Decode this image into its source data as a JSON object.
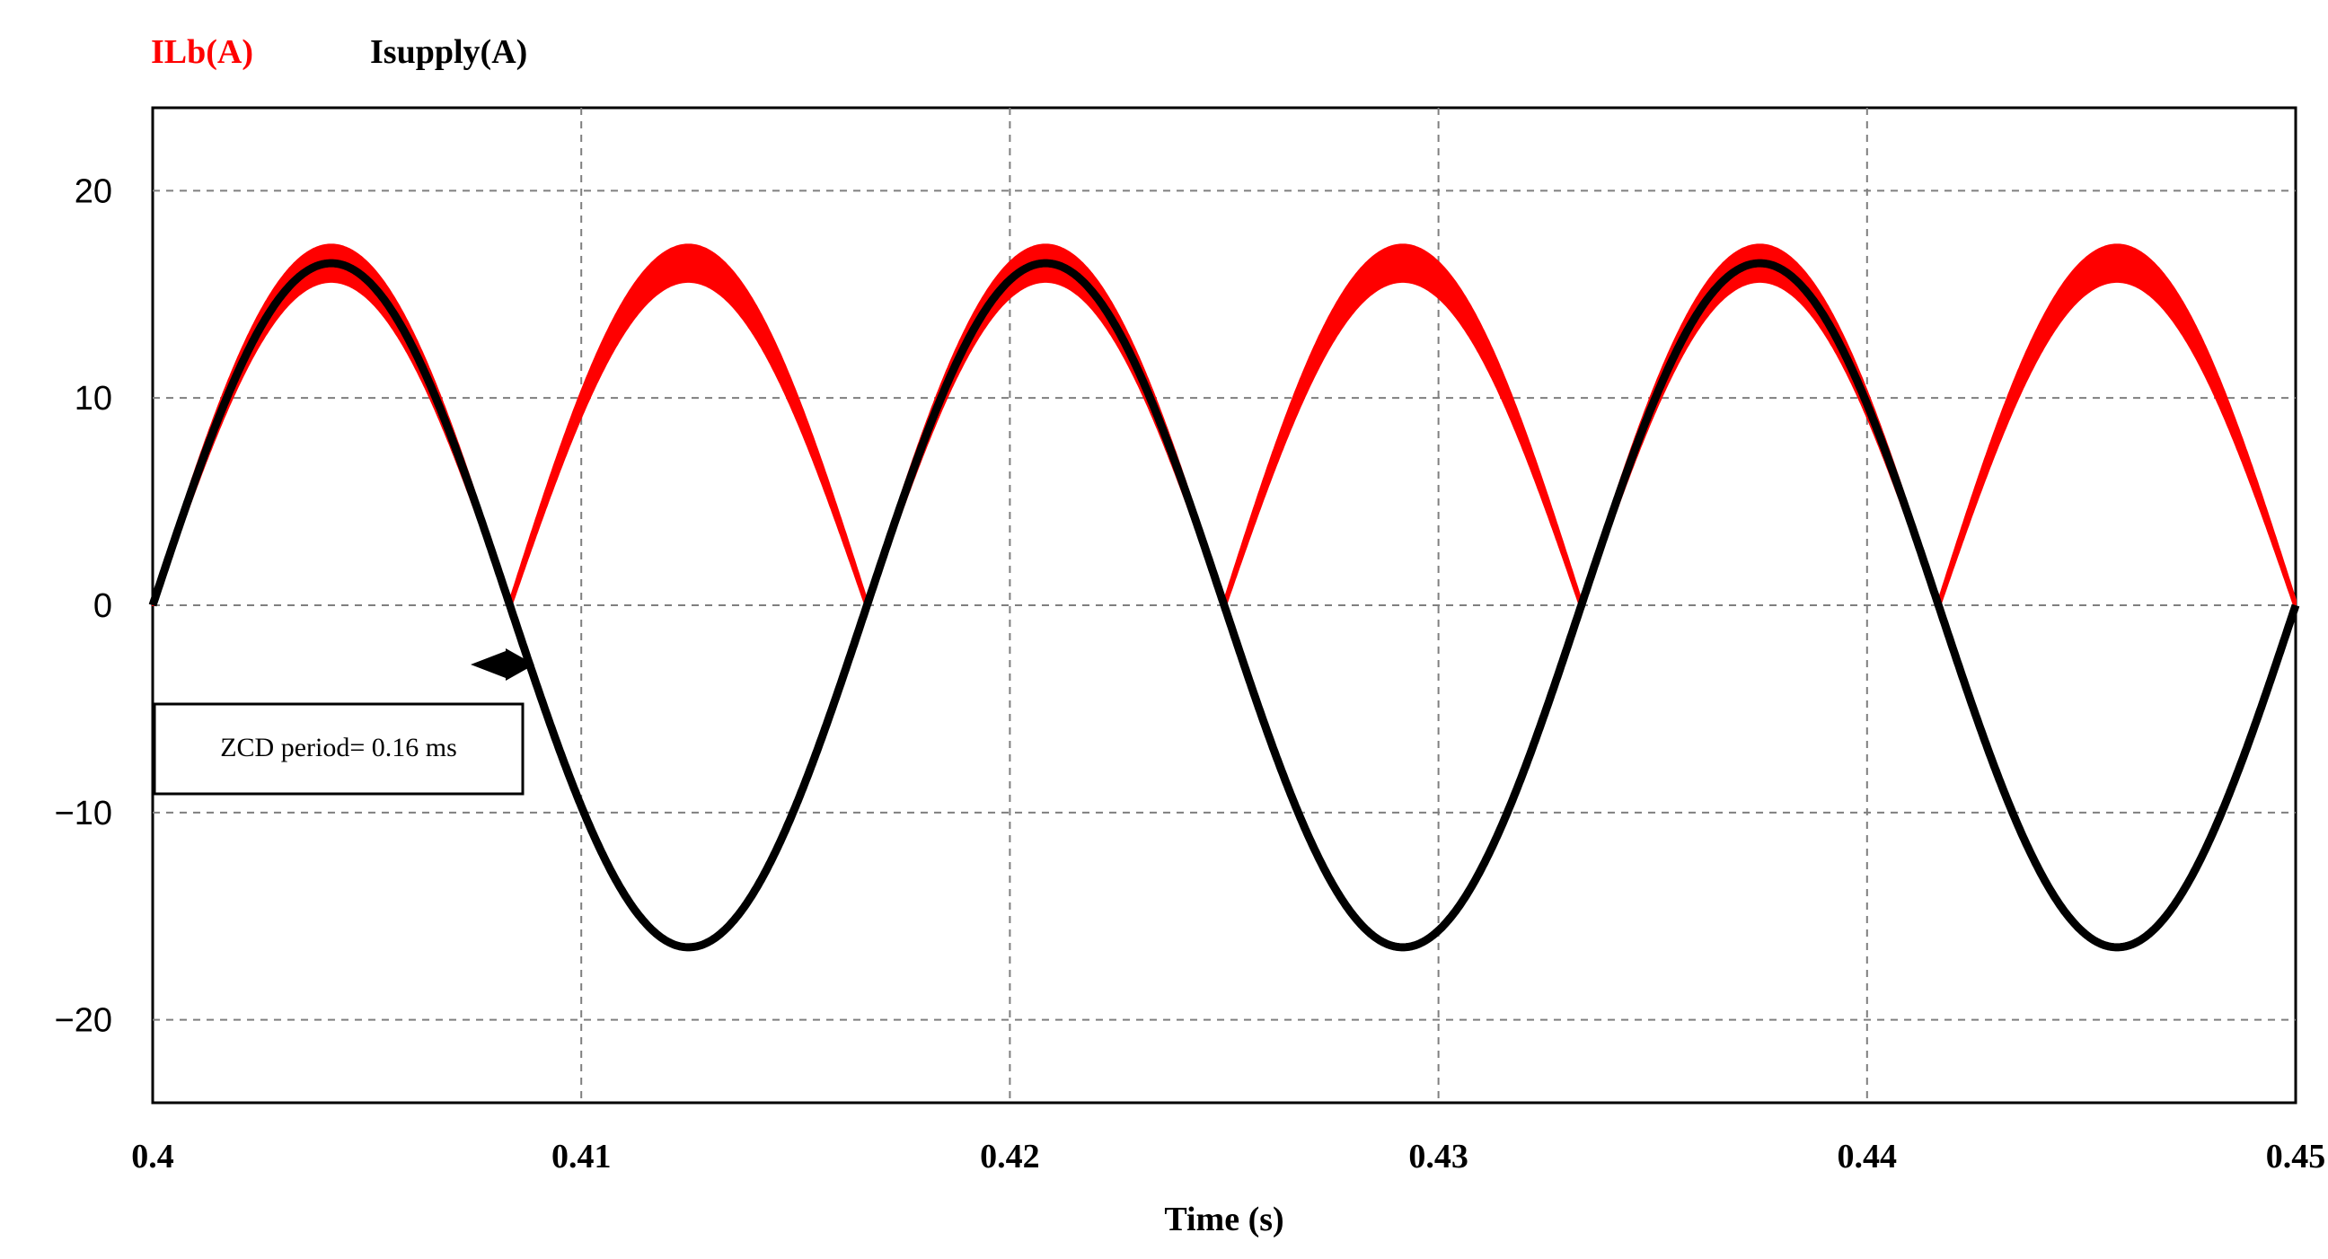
{
  "chart_data": {
    "type": "line",
    "xlabel": "Time (s)",
    "ylabel": "",
    "xlim": [
      0.4,
      0.45
    ],
    "ylim": [
      -24,
      24
    ],
    "x_ticks": [
      0.4,
      0.41,
      0.42,
      0.43,
      0.44,
      0.45
    ],
    "x_tick_labels": [
      "0.4",
      "0.41",
      "0.42",
      "0.43",
      "0.44",
      "0.45"
    ],
    "y_ticks": [
      20,
      10,
      0,
      -10,
      -20
    ],
    "y_tick_labels": [
      "20",
      "10",
      "0",
      "−10",
      "−20"
    ],
    "grid": true,
    "legend": "top-left",
    "annotation": "ZCD period= 0.16 ms",
    "series": [
      {
        "name": "ILb(A)",
        "color": "#ff0000",
        "description_values": {
          "x": [
            0.4,
            0.4042,
            0.4083,
            0.4125,
            0.4167,
            0.4208,
            0.425,
            0.4292,
            0.4333,
            0.4375,
            0.4417,
            0.4458,
            0.45
          ],
          "y": [
            0,
            16.5,
            0,
            16.5,
            0,
            16.5,
            0,
            16.5,
            0,
            16.5,
            0,
            16.5,
            0
          ]
        }
      },
      {
        "name": "Isupply(A)",
        "color": "#000000",
        "description_values": {
          "x": [
            0.4,
            0.4042,
            0.4083,
            0.4125,
            0.4167,
            0.4208,
            0.425,
            0.4292,
            0.4333,
            0.4375,
            0.4417,
            0.4458,
            0.45
          ],
          "y": [
            0,
            16.5,
            0,
            -16.5,
            0,
            16.5,
            0,
            -16.5,
            0,
            16.5,
            0,
            -16.5,
            0
          ]
        }
      }
    ]
  }
}
